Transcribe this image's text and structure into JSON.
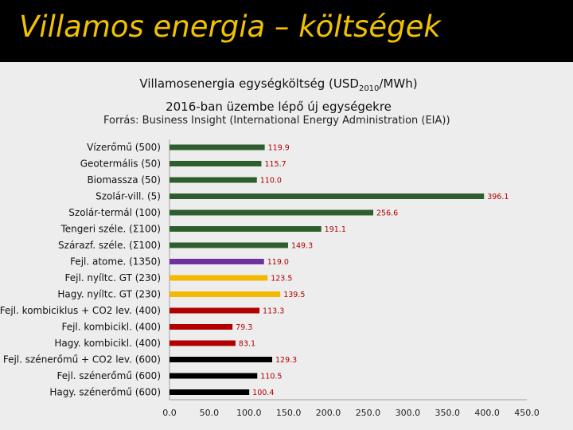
{
  "slide": {
    "title": "Villamos energia – költségek"
  },
  "chart_data": {
    "type": "bar",
    "orientation": "horizontal",
    "title_main": "Villamosenergia egységköltség (USD",
    "title_sub": "2010",
    "title_end": "/MWh)",
    "subtitle": "2016-ban üzembe lépő új egységekre",
    "source": "Forrás: Business Insight (International Energy Administration (EIA))",
    "xlim": [
      0,
      450
    ],
    "x_ticks": [
      "0.0",
      "50.0",
      "100.0",
      "150.0",
      "200.0",
      "250.0",
      "300.0",
      "350.0",
      "400.0",
      "450.0"
    ],
    "grid": false,
    "legend": "none",
    "categories": [
      "Vízerőmű (500)",
      "Geotermális (50)",
      "Biomassza (50)",
      "Szolár-vill. (5)",
      "Szolár-termál (100)",
      "Tengeri széle. (Σ100)",
      "Szárazf. széle. (Σ100)",
      "Fejl. atome. (1350)",
      "Fejl. nyíltc. GT (230)",
      "Hagy. nyíltc. GT (230)",
      "Fejl. kombiciklus + CO2 lev. (400)",
      "Fejl. kombicikl. (400)",
      "Hagy. kombicikl. (400)",
      "Fejl. szénerőmű + CO2 lev. (600)",
      "Fejl. szénerőmű (600)",
      "Hagy. szénerőmű (600)"
    ],
    "values": [
      119.9,
      115.7,
      110.0,
      396.1,
      256.6,
      191.1,
      149.3,
      119.0,
      123.5,
      139.5,
      113.3,
      79.3,
      83.1,
      129.3,
      110.5,
      100.4
    ],
    "value_labels": [
      "119.9",
      "115.7",
      "110.0",
      "396.1",
      "256.6",
      "191.1",
      "149.3",
      "119.0",
      "123.5",
      "139.5",
      "113.3",
      "79.3",
      "83.1",
      "129.3",
      "110.5",
      "100.4"
    ],
    "bar_colors": [
      "#2e5d2e",
      "#2e5d2e",
      "#2e5d2e",
      "#2e5d2e",
      "#2e5d2e",
      "#2e5d2e",
      "#2e5d2e",
      "#7030a0",
      "#f5b800",
      "#f5b800",
      "#b00000",
      "#b00000",
      "#b00000",
      "#000000",
      "#000000",
      "#000000"
    ],
    "value_label_color": "#b00000"
  }
}
